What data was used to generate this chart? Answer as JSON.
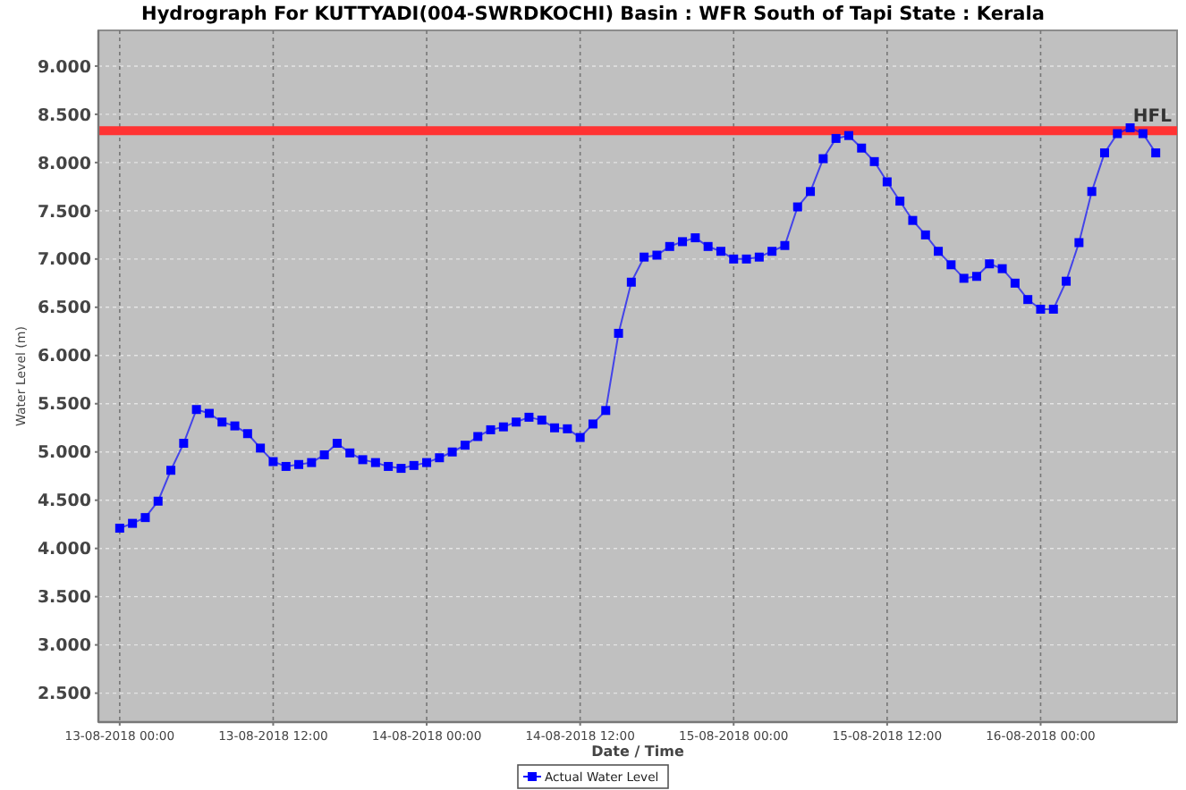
{
  "chart_data": {
    "type": "line",
    "title": "Hydrograph For KUTTYADI(004-SWRDKOCHI) Basin : WFR South of Tapi State : Kerala",
    "xlabel": "Date / Time",
    "ylabel": "Water Level (m)",
    "x": [
      "2018-08-13T00:00",
      "2018-08-13T01:00",
      "2018-08-13T02:00",
      "2018-08-13T03:00",
      "2018-08-13T04:00",
      "2018-08-13T05:00",
      "2018-08-13T06:00",
      "2018-08-13T07:00",
      "2018-08-13T08:00",
      "2018-08-13T09:00",
      "2018-08-13T10:00",
      "2018-08-13T11:00",
      "2018-08-13T12:00",
      "2018-08-13T13:00",
      "2018-08-13T14:00",
      "2018-08-13T15:00",
      "2018-08-13T16:00",
      "2018-08-13T17:00",
      "2018-08-13T18:00",
      "2018-08-13T19:00",
      "2018-08-13T20:00",
      "2018-08-13T21:00",
      "2018-08-13T22:00",
      "2018-08-13T23:00",
      "2018-08-14T00:00",
      "2018-08-14T01:00",
      "2018-08-14T02:00",
      "2018-08-14T03:00",
      "2018-08-14T04:00",
      "2018-08-14T05:00",
      "2018-08-14T06:00",
      "2018-08-14T07:00",
      "2018-08-14T08:00",
      "2018-08-14T09:00",
      "2018-08-14T10:00",
      "2018-08-14T11:00",
      "2018-08-14T12:00",
      "2018-08-14T13:00",
      "2018-08-14T14:00",
      "2018-08-14T15:00",
      "2018-08-14T16:00",
      "2018-08-14T17:00",
      "2018-08-14T18:00",
      "2018-08-14T19:00",
      "2018-08-14T20:00",
      "2018-08-14T21:00",
      "2018-08-14T22:00",
      "2018-08-14T23:00",
      "2018-08-15T00:00",
      "2018-08-15T01:00",
      "2018-08-15T02:00",
      "2018-08-15T03:00",
      "2018-08-15T04:00",
      "2018-08-15T05:00",
      "2018-08-15T06:00",
      "2018-08-15T07:00",
      "2018-08-15T08:00",
      "2018-08-15T09:00",
      "2018-08-15T10:00",
      "2018-08-15T11:00",
      "2018-08-15T12:00",
      "2018-08-15T13:00",
      "2018-08-15T14:00",
      "2018-08-15T15:00",
      "2018-08-15T16:00",
      "2018-08-15T17:00",
      "2018-08-15T18:00",
      "2018-08-15T19:00",
      "2018-08-15T20:00",
      "2018-08-15T21:00",
      "2018-08-15T22:00",
      "2018-08-15T23:00",
      "2018-08-16T00:00",
      "2018-08-16T01:00",
      "2018-08-16T02:00",
      "2018-08-16T03:00",
      "2018-08-16T04:00",
      "2018-08-16T05:00",
      "2018-08-16T06:00",
      "2018-08-16T07:00",
      "2018-08-16T08:00",
      "2018-08-16T09:00"
    ],
    "series": [
      {
        "name": "Actual Water Level",
        "color": "#0000ff",
        "values": [
          4.21,
          4.26,
          4.32,
          4.49,
          4.81,
          5.09,
          5.44,
          5.4,
          5.31,
          5.27,
          5.19,
          5.04,
          4.9,
          4.85,
          4.87,
          4.89,
          4.97,
          5.09,
          4.99,
          4.92,
          4.89,
          4.85,
          4.83,
          4.86,
          4.89,
          4.94,
          5.0,
          5.07,
          5.16,
          5.23,
          5.26,
          5.31,
          5.36,
          5.33,
          5.25,
          5.24,
          5.15,
          5.29,
          5.43,
          6.23,
          6.76,
          7.02,
          7.04,
          7.13,
          7.18,
          7.22,
          7.13,
          7.08,
          7.0,
          7.0,
          7.02,
          7.08,
          7.14,
          7.54,
          7.7,
          8.04,
          8.25,
          8.28,
          8.15,
          8.01,
          7.8,
          7.6,
          7.4,
          7.25,
          7.08,
          6.94,
          6.8,
          6.82,
          6.95,
          6.9,
          6.75,
          6.58,
          6.48,
          6.48,
          6.77,
          7.17,
          7.7,
          8.1,
          8.3,
          8.36,
          8.3,
          8.1
        ]
      }
    ],
    "xlim": [
      "2018-08-12T22:20",
      "2018-08-16T10:40"
    ],
    "xticks": [
      {
        "value": "2018-08-13T00:00",
        "label": "13-08-2018 00:00"
      },
      {
        "value": "2018-08-13T12:00",
        "label": "13-08-2018 12:00"
      },
      {
        "value": "2018-08-14T00:00",
        "label": "14-08-2018 00:00"
      },
      {
        "value": "2018-08-14T12:00",
        "label": "14-08-2018 12:00"
      },
      {
        "value": "2018-08-15T00:00",
        "label": "15-08-2018 00:00"
      },
      {
        "value": "2018-08-15T12:00",
        "label": "15-08-2018 12:00"
      },
      {
        "value": "2018-08-16T00:00",
        "label": "16-08-2018 00:00"
      }
    ],
    "ylim": [
      2.2,
      9.37
    ],
    "yticks": [
      {
        "value": 2.5,
        "label": "2.500"
      },
      {
        "value": 3,
        "label": "3.000"
      },
      {
        "value": 3.5,
        "label": "3.500"
      },
      {
        "value": 4,
        "label": "4.000"
      },
      {
        "value": 4.5,
        "label": "4.500"
      },
      {
        "value": 5,
        "label": "5.000"
      },
      {
        "value": 5.5,
        "label": "5.500"
      },
      {
        "value": 6,
        "label": "6.000"
      },
      {
        "value": 6.5,
        "label": "6.500"
      },
      {
        "value": 7,
        "label": "7.000"
      },
      {
        "value": 7.5,
        "label": "7.500"
      },
      {
        "value": 8,
        "label": "8.000"
      },
      {
        "value": 8.5,
        "label": "8.500"
      },
      {
        "value": 9,
        "label": "9.000"
      }
    ],
    "ref_lines": [
      {
        "axis": "y",
        "value": 8.33,
        "label": "HFL",
        "color": "#ff3333"
      }
    ],
    "grid": true,
    "legend": "bottom",
    "marker": "square",
    "line_style": "solid"
  }
}
